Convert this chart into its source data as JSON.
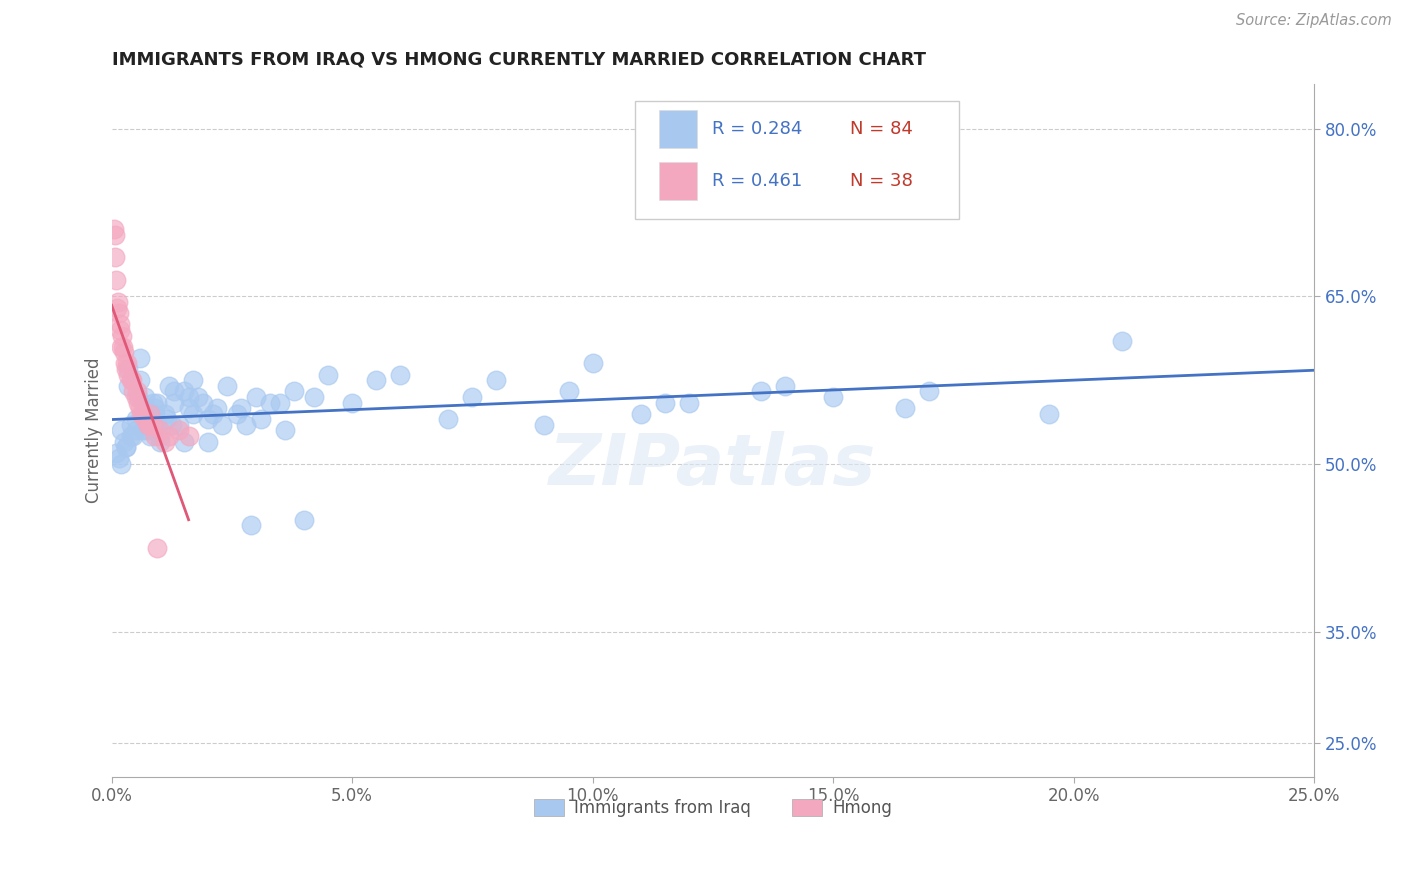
{
  "title": "IMMIGRANTS FROM IRAQ VS HMONG CURRENTLY MARRIED CORRELATION CHART",
  "source": "Source: ZipAtlas.com",
  "ylabel": "Currently Married",
  "x_ticks": [
    0.0,
    5.0,
    10.0,
    15.0,
    20.0,
    25.0
  ],
  "x_tick_labels": [
    "0.0%",
    "5.0%",
    "10.0%",
    "15.0%",
    "20.0%",
    "25.0%"
  ],
  "y_ticks": [
    25.0,
    35.0,
    50.0,
    65.0,
    80.0
  ],
  "y_tick_labels": [
    "25.0%",
    "35.0%",
    "50.0%",
    "65.0%",
    "80.0%"
  ],
  "xlim": [
    0.0,
    25.0
  ],
  "ylim": [
    22.0,
    84.0
  ],
  "iraq_color": "#a8c8f0",
  "hmong_color": "#f4a8c0",
  "iraq_line_color": "#4472c4",
  "hmong_line_color": "#e05878",
  "R_iraq": 0.284,
  "N_iraq": 84,
  "R_hmong": 0.461,
  "N_hmong": 38,
  "iraq_label": "Immigrants from Iraq",
  "hmong_label": "Hmong",
  "watermark": "ZIPatlas",
  "legend_R_color": "#4472c4",
  "legend_N_color": "#c0392b",
  "iraq_x": [
    0.1,
    0.15,
    0.2,
    0.25,
    0.3,
    0.35,
    0.4,
    0.45,
    0.5,
    0.55,
    0.6,
    0.65,
    0.7,
    0.75,
    0.8,
    0.85,
    0.9,
    0.95,
    1.0,
    1.1,
    1.2,
    1.3,
    1.4,
    1.5,
    1.6,
    1.7,
    1.8,
    1.9,
    2.0,
    2.2,
    2.4,
    2.6,
    2.8,
    3.0,
    3.3,
    3.6,
    4.0,
    4.5,
    5.0,
    6.0,
    7.0,
    8.0,
    9.0,
    10.0,
    11.0,
    12.0,
    13.5,
    15.0,
    17.0,
    19.5,
    0.2,
    0.3,
    0.4,
    0.5,
    0.6,
    0.7,
    0.8,
    0.9,
    1.0,
    1.15,
    1.3,
    1.5,
    1.7,
    2.0,
    2.3,
    2.7,
    3.1,
    3.5,
    4.2,
    5.5,
    7.5,
    9.5,
    11.5,
    14.0,
    16.5,
    21.0,
    0.35,
    0.65,
    0.95,
    1.25,
    1.6,
    2.1,
    2.9,
    3.8
  ],
  "iraq_y": [
    51.0,
    50.5,
    53.0,
    52.0,
    51.5,
    57.0,
    53.5,
    52.5,
    54.0,
    56.0,
    57.5,
    54.5,
    55.0,
    53.0,
    54.0,
    55.5,
    54.5,
    53.5,
    52.0,
    54.5,
    57.0,
    55.5,
    53.5,
    56.5,
    55.0,
    57.5,
    56.0,
    55.5,
    54.0,
    55.0,
    57.0,
    54.5,
    53.5,
    56.0,
    55.5,
    53.0,
    45.0,
    58.0,
    55.5,
    58.0,
    54.0,
    57.5,
    53.5,
    59.0,
    54.5,
    55.5,
    56.5,
    56.0,
    56.5,
    54.5,
    50.0,
    51.5,
    52.5,
    53.0,
    59.5,
    56.0,
    52.5,
    55.0,
    52.5,
    54.0,
    56.5,
    52.0,
    54.5,
    52.0,
    53.5,
    55.0,
    54.0,
    55.5,
    56.0,
    57.5,
    56.0,
    56.5,
    55.5,
    57.0,
    55.0,
    61.0,
    58.5,
    53.0,
    55.5,
    53.5,
    56.0,
    54.5,
    44.5,
    56.5
  ],
  "hmong_x": [
    0.05,
    0.08,
    0.1,
    0.12,
    0.15,
    0.18,
    0.2,
    0.22,
    0.25,
    0.28,
    0.3,
    0.35,
    0.4,
    0.45,
    0.5,
    0.55,
    0.6,
    0.65,
    0.7,
    0.75,
    0.8,
    0.85,
    0.9,
    1.0,
    1.1,
    1.2,
    1.4,
    1.6,
    0.07,
    0.13,
    0.17,
    0.23,
    0.32,
    0.42,
    0.52,
    0.62,
    0.78,
    0.95
  ],
  "hmong_y": [
    71.0,
    68.5,
    66.5,
    64.0,
    63.5,
    62.0,
    60.5,
    61.5,
    60.0,
    59.0,
    58.5,
    58.0,
    57.5,
    56.5,
    56.0,
    55.5,
    55.0,
    54.5,
    54.0,
    53.5,
    54.5,
    53.5,
    52.5,
    53.0,
    52.0,
    52.5,
    53.0,
    52.5,
    70.5,
    64.5,
    62.5,
    60.5,
    59.0,
    57.5,
    56.5,
    54.5,
    53.5,
    42.5
  ]
}
